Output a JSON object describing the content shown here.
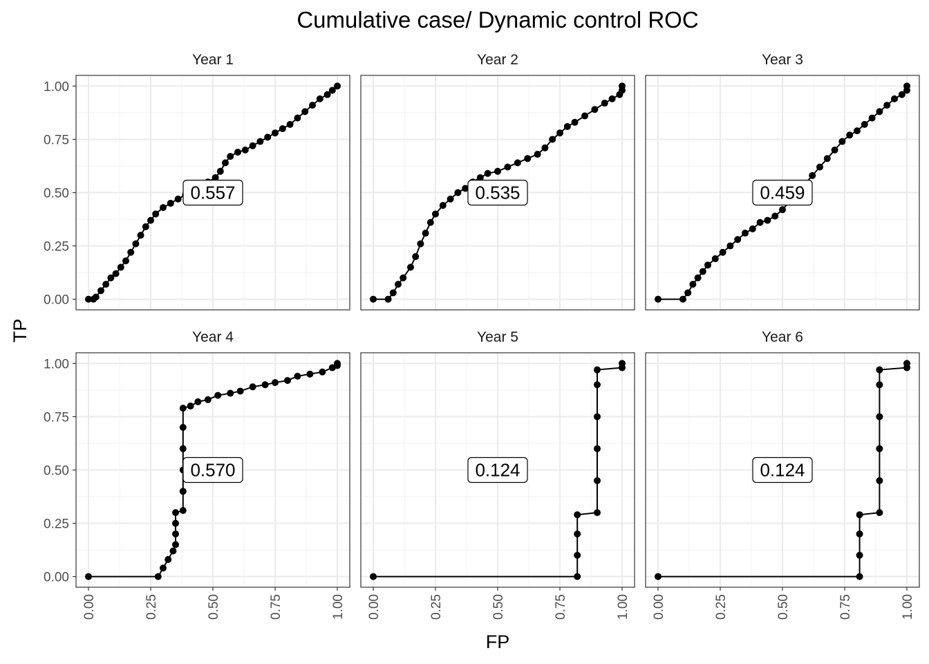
{
  "chart_data": {
    "type": "line",
    "title": "Cumulative case/ Dynamic control ROC",
    "xlabel": "FP",
    "ylabel": "TP",
    "xlim": [
      0,
      1
    ],
    "ylim": [
      0,
      1
    ],
    "x_ticks": [
      "0.00",
      "0.25",
      "0.50",
      "0.75",
      "1.00"
    ],
    "y_ticks": [
      "0.00",
      "0.25",
      "0.50",
      "0.75",
      "1.00"
    ],
    "grid": true,
    "legend": "none",
    "panels": [
      {
        "name": "Year 1",
        "auc": "0.557",
        "points": [
          [
            0,
            0
          ],
          [
            0.02,
            0
          ],
          [
            0.03,
            0.01
          ],
          [
            0.05,
            0.04
          ],
          [
            0.07,
            0.07
          ],
          [
            0.09,
            0.1
          ],
          [
            0.11,
            0.12
          ],
          [
            0.13,
            0.15
          ],
          [
            0.15,
            0.18
          ],
          [
            0.17,
            0.22
          ],
          [
            0.19,
            0.26
          ],
          [
            0.21,
            0.3
          ],
          [
            0.23,
            0.34
          ],
          [
            0.25,
            0.37
          ],
          [
            0.27,
            0.4
          ],
          [
            0.3,
            0.43
          ],
          [
            0.33,
            0.45
          ],
          [
            0.36,
            0.47
          ],
          [
            0.39,
            0.49
          ],
          [
            0.42,
            0.51
          ],
          [
            0.45,
            0.53
          ],
          [
            0.48,
            0.55
          ],
          [
            0.51,
            0.57
          ],
          [
            0.53,
            0.6
          ],
          [
            0.55,
            0.64
          ],
          [
            0.57,
            0.67
          ],
          [
            0.6,
            0.69
          ],
          [
            0.63,
            0.7
          ],
          [
            0.66,
            0.72
          ],
          [
            0.69,
            0.74
          ],
          [
            0.72,
            0.76
          ],
          [
            0.75,
            0.78
          ],
          [
            0.78,
            0.8
          ],
          [
            0.81,
            0.82
          ],
          [
            0.84,
            0.85
          ],
          [
            0.87,
            0.88
          ],
          [
            0.9,
            0.91
          ],
          [
            0.93,
            0.94
          ],
          [
            0.96,
            0.96
          ],
          [
            0.98,
            0.98
          ],
          [
            1,
            1
          ]
        ]
      },
      {
        "name": "Year 2",
        "auc": "0.535",
        "points": [
          [
            0,
            0
          ],
          [
            0.06,
            0
          ],
          [
            0.08,
            0.03
          ],
          [
            0.1,
            0.07
          ],
          [
            0.12,
            0.1
          ],
          [
            0.15,
            0.15
          ],
          [
            0.17,
            0.2
          ],
          [
            0.19,
            0.26
          ],
          [
            0.21,
            0.31
          ],
          [
            0.23,
            0.36
          ],
          [
            0.25,
            0.4
          ],
          [
            0.28,
            0.44
          ],
          [
            0.31,
            0.47
          ],
          [
            0.34,
            0.5
          ],
          [
            0.37,
            0.52
          ],
          [
            0.4,
            0.55
          ],
          [
            0.43,
            0.57
          ],
          [
            0.46,
            0.59
          ],
          [
            0.5,
            0.6
          ],
          [
            0.54,
            0.62
          ],
          [
            0.58,
            0.64
          ],
          [
            0.62,
            0.66
          ],
          [
            0.66,
            0.68
          ],
          [
            0.69,
            0.71
          ],
          [
            0.72,
            0.75
          ],
          [
            0.75,
            0.78
          ],
          [
            0.78,
            0.81
          ],
          [
            0.81,
            0.83
          ],
          [
            0.85,
            0.86
          ],
          [
            0.89,
            0.89
          ],
          [
            0.93,
            0.92
          ],
          [
            0.96,
            0.94
          ],
          [
            0.99,
            0.96
          ],
          [
            1,
            0.98
          ],
          [
            1,
            1
          ]
        ]
      },
      {
        "name": "Year 3",
        "auc": "0.459",
        "points": [
          [
            0,
            0
          ],
          [
            0.1,
            0
          ],
          [
            0.12,
            0.03
          ],
          [
            0.14,
            0.07
          ],
          [
            0.16,
            0.1
          ],
          [
            0.18,
            0.13
          ],
          [
            0.2,
            0.16
          ],
          [
            0.23,
            0.19
          ],
          [
            0.26,
            0.22
          ],
          [
            0.29,
            0.25
          ],
          [
            0.32,
            0.28
          ],
          [
            0.35,
            0.31
          ],
          [
            0.38,
            0.33
          ],
          [
            0.41,
            0.36
          ],
          [
            0.44,
            0.37
          ],
          [
            0.47,
            0.39
          ],
          [
            0.5,
            0.42
          ],
          [
            0.53,
            0.46
          ],
          [
            0.56,
            0.5
          ],
          [
            0.59,
            0.54
          ],
          [
            0.62,
            0.58
          ],
          [
            0.65,
            0.62
          ],
          [
            0.68,
            0.66
          ],
          [
            0.71,
            0.7
          ],
          [
            0.74,
            0.74
          ],
          [
            0.77,
            0.77
          ],
          [
            0.8,
            0.79
          ],
          [
            0.83,
            0.82
          ],
          [
            0.86,
            0.85
          ],
          [
            0.89,
            0.88
          ],
          [
            0.92,
            0.91
          ],
          [
            0.95,
            0.94
          ],
          [
            0.98,
            0.96
          ],
          [
            1,
            0.98
          ],
          [
            1,
            1
          ]
        ]
      },
      {
        "name": "Year 4",
        "auc": "0.570",
        "points": [
          [
            0,
            0
          ],
          [
            0.28,
            0
          ],
          [
            0.3,
            0.04
          ],
          [
            0.32,
            0.08
          ],
          [
            0.34,
            0.12
          ],
          [
            0.35,
            0.15
          ],
          [
            0.35,
            0.2
          ],
          [
            0.35,
            0.25
          ],
          [
            0.35,
            0.3
          ],
          [
            0.38,
            0.31
          ],
          [
            0.38,
            0.4
          ],
          [
            0.38,
            0.5
          ],
          [
            0.38,
            0.6
          ],
          [
            0.38,
            0.7
          ],
          [
            0.38,
            0.79
          ],
          [
            0.41,
            0.8
          ],
          [
            0.44,
            0.82
          ],
          [
            0.48,
            0.83
          ],
          [
            0.52,
            0.85
          ],
          [
            0.57,
            0.86
          ],
          [
            0.61,
            0.87
          ],
          [
            0.66,
            0.89
          ],
          [
            0.71,
            0.9
          ],
          [
            0.75,
            0.91
          ],
          [
            0.8,
            0.92
          ],
          [
            0.84,
            0.94
          ],
          [
            0.89,
            0.95
          ],
          [
            0.94,
            0.96
          ],
          [
            0.98,
            0.98
          ],
          [
            1,
            0.99
          ],
          [
            1,
            1
          ]
        ]
      },
      {
        "name": "Year 5",
        "auc": "0.124",
        "points": [
          [
            0,
            0
          ],
          [
            0.82,
            0
          ],
          [
            0.82,
            0.1
          ],
          [
            0.82,
            0.2
          ],
          [
            0.82,
            0.29
          ],
          [
            0.9,
            0.3
          ],
          [
            0.9,
            0.45
          ],
          [
            0.9,
            0.6
          ],
          [
            0.9,
            0.75
          ],
          [
            0.9,
            0.9
          ],
          [
            0.9,
            0.97
          ],
          [
            1,
            0.98
          ],
          [
            1,
            1
          ]
        ]
      },
      {
        "name": "Year 6",
        "auc": "0.124",
        "points": [
          [
            0,
            0
          ],
          [
            0.81,
            0
          ],
          [
            0.81,
            0.1
          ],
          [
            0.81,
            0.2
          ],
          [
            0.81,
            0.29
          ],
          [
            0.89,
            0.3
          ],
          [
            0.89,
            0.45
          ],
          [
            0.89,
            0.6
          ],
          [
            0.89,
            0.75
          ],
          [
            0.89,
            0.9
          ],
          [
            0.89,
            0.97
          ],
          [
            1,
            0.98
          ],
          [
            1,
            1
          ]
        ]
      }
    ]
  }
}
